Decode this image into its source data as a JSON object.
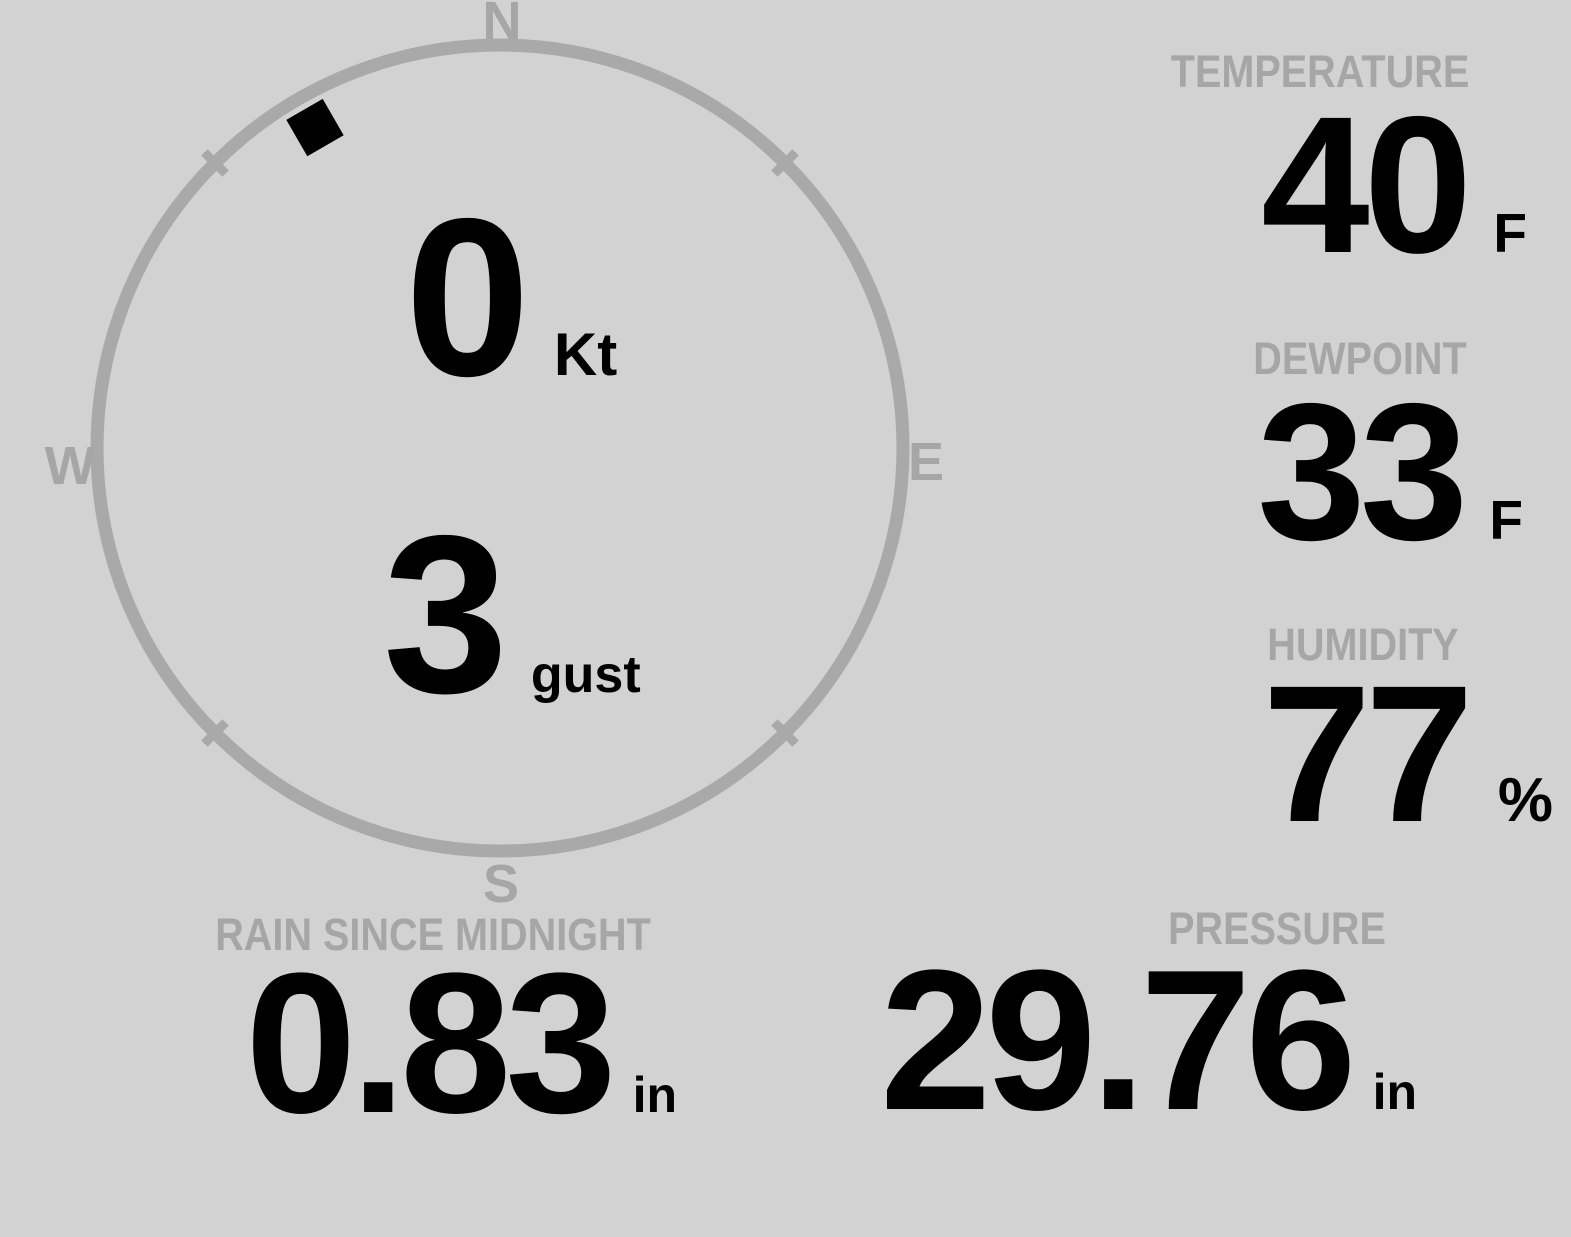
{
  "display": {
    "background_color": "#d2d2d2",
    "muted_text_color": "#a6a6a6",
    "ring_color": "#a9a9a9",
    "value_text_color": "#000000"
  },
  "compass": {
    "cardinal_n": "N",
    "cardinal_e": "E",
    "cardinal_s": "S",
    "cardinal_w": "W",
    "wind_direction_deg": 330,
    "speed": {
      "value": "0",
      "unit": "Kt"
    },
    "gust": {
      "value": "3",
      "unit": "gust"
    }
  },
  "metrics": {
    "temperature": {
      "label": "TEMPERATURE",
      "value": "40",
      "unit": "F"
    },
    "dewpoint": {
      "label": "DEWPOINT",
      "value": "33",
      "unit": "F"
    },
    "humidity": {
      "label": "HUMIDITY",
      "value": "77",
      "unit": "%"
    },
    "rain_since_midnight": {
      "label": "RAIN SINCE MIDNIGHT",
      "value": "0.83",
      "unit": "in"
    },
    "pressure": {
      "label": "PRESSURE",
      "value": "29.76",
      "unit": "in"
    }
  }
}
